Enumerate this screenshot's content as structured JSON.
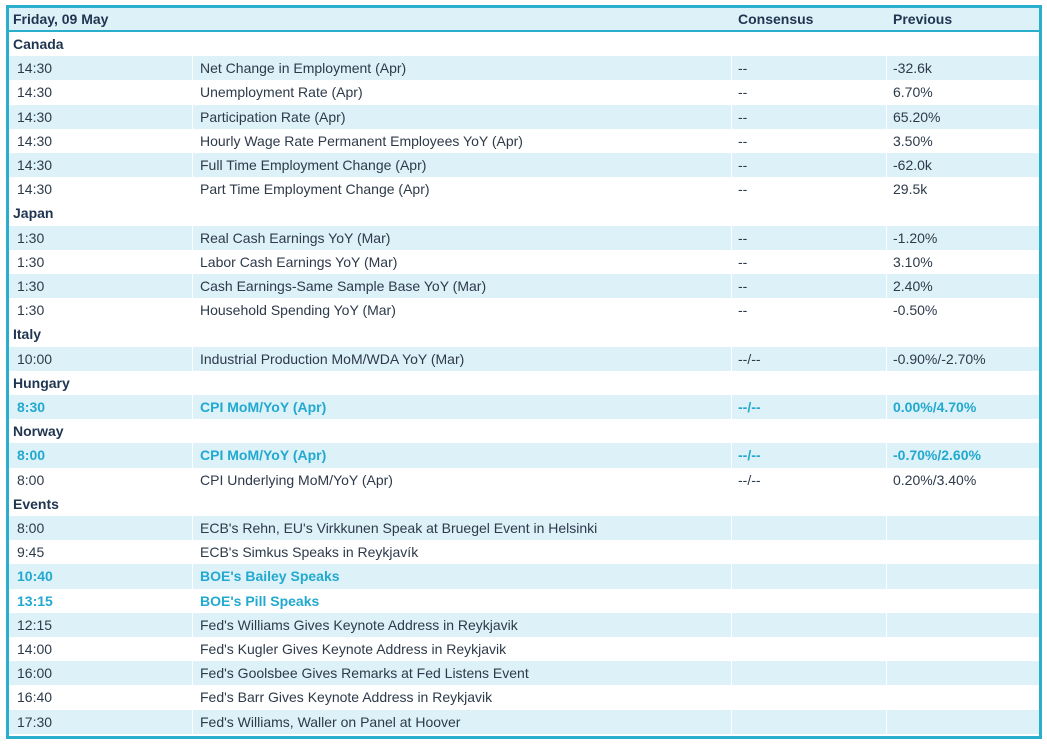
{
  "header": {
    "date": "Friday, 09 May",
    "consensus": "Consensus",
    "previous": "Previous"
  },
  "groups": [
    {
      "name": "Canada",
      "rows": [
        {
          "time": "14:30",
          "event": "Net Change in Employment (Apr)",
          "consensus": "--",
          "previous": "-32.6k",
          "highlight": false
        },
        {
          "time": "14:30",
          "event": "Unemployment Rate (Apr)",
          "consensus": "--",
          "previous": "6.70%",
          "highlight": false
        },
        {
          "time": "14:30",
          "event": "Participation Rate (Apr)",
          "consensus": "--",
          "previous": "65.20%",
          "highlight": false
        },
        {
          "time": "14:30",
          "event": "Hourly Wage Rate Permanent Employees YoY (Apr)",
          "consensus": "--",
          "previous": "3.50%",
          "highlight": false
        },
        {
          "time": "14:30",
          "event": "Full Time Employment Change (Apr)",
          "consensus": "--",
          "previous": "-62.0k",
          "highlight": false
        },
        {
          "time": "14:30",
          "event": "Part Time Employment Change (Apr)",
          "consensus": "--",
          "previous": "29.5k",
          "highlight": false
        }
      ]
    },
    {
      "name": "Japan",
      "rows": [
        {
          "time": "1:30",
          "event": "Real Cash Earnings YoY (Mar)",
          "consensus": "--",
          "previous": "-1.20%",
          "highlight": false
        },
        {
          "time": "1:30",
          "event": "Labor Cash Earnings YoY (Mar)",
          "consensus": "--",
          "previous": "3.10%",
          "highlight": false
        },
        {
          "time": "1:30",
          "event": "Cash Earnings-Same Sample Base YoY (Mar)",
          "consensus": "--",
          "previous": "2.40%",
          "highlight": false
        },
        {
          "time": "1:30",
          "event": "Household Spending YoY (Mar)",
          "consensus": "--",
          "previous": "-0.50%",
          "highlight": false
        }
      ]
    },
    {
      "name": "Italy",
      "rows": [
        {
          "time": "10:00",
          "event": "Industrial Production MoM/WDA YoY (Mar)",
          "consensus": "--/--",
          "previous": "-0.90%/-2.70%",
          "highlight": false
        }
      ]
    },
    {
      "name": "Hungary",
      "rows": [
        {
          "time": "8:30",
          "event": "CPI MoM/YoY (Apr)",
          "consensus": "--/--",
          "previous": "0.00%/4.70%",
          "highlight": true
        }
      ]
    },
    {
      "name": "Norway",
      "rows": [
        {
          "time": "8:00",
          "event": "CPI MoM/YoY (Apr)",
          "consensus": "--/--",
          "previous": "-0.70%/2.60%",
          "highlight": true
        },
        {
          "time": "8:00",
          "event": "CPI Underlying MoM/YoY (Apr)",
          "consensus": "--/--",
          "previous": "0.20%/3.40%",
          "highlight": false
        }
      ]
    },
    {
      "name": "Events",
      "rows": [
        {
          "time": "8:00",
          "event": "ECB's Rehn, EU's Virkkunen Speak at Bruegel Event in Helsinki",
          "consensus": "",
          "previous": "",
          "highlight": false
        },
        {
          "time": "9:45",
          "event": "ECB's Simkus Speaks in Reykjavík",
          "consensus": "",
          "previous": "",
          "highlight": false
        },
        {
          "time": "10:40",
          "event": "BOE's Bailey Speaks",
          "consensus": "",
          "previous": "",
          "highlight": true
        },
        {
          "time": "13:15",
          "event": "BOE's Pill Speaks",
          "consensus": "",
          "previous": "",
          "highlight": true
        },
        {
          "time": "12:15",
          "event": "Fed's Williams Gives Keynote Address in Reykjavik",
          "consensus": "",
          "previous": "",
          "highlight": false
        },
        {
          "time": "14:00",
          "event": "Fed's Kugler Gives Keynote Address in Reykjavik",
          "consensus": "",
          "previous": "",
          "highlight": false
        },
        {
          "time": "16:00",
          "event": "Fed's Goolsbee Gives Remarks at Fed Listens Event",
          "consensus": "",
          "previous": "",
          "highlight": false
        },
        {
          "time": "16:40",
          "event": "Fed's Barr Gives Keynote Address in Reykjavik",
          "consensus": "",
          "previous": "",
          "highlight": false
        },
        {
          "time": "17:30",
          "event": "Fed's Williams, Waller on Panel at Hoover",
          "consensus": "",
          "previous": "",
          "highlight": false
        }
      ]
    }
  ],
  "colors": {
    "border": "#2aaecb",
    "shade": "#ddf1f8",
    "highlight_text": "#22a9cf",
    "text": "#2d3a4a"
  }
}
